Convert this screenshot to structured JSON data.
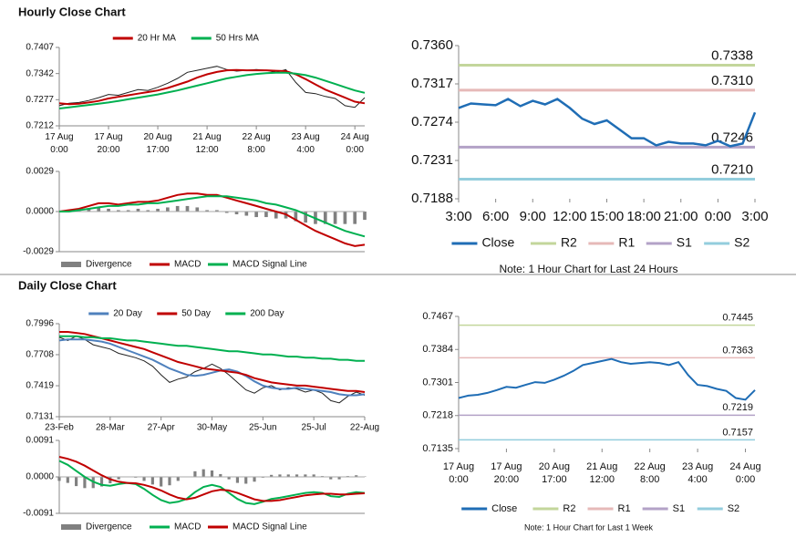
{
  "headings": [
    "Hourly Close Chart",
    "Daily Close Chart"
  ],
  "chart_data": [
    {
      "type": "line",
      "legend": "top",
      "categories": [
        "17 Aug\n0:00",
        null,
        null,
        null,
        null,
        "17 Aug\n20:00",
        null,
        null,
        null,
        null,
        "20 Aug\n17:00",
        null,
        null,
        null,
        null,
        "21 Aug\n12:00",
        null,
        null,
        null,
        null,
        "22 Aug\n8:00",
        null,
        null,
        null,
        null,
        "23 Aug\n4:00",
        null,
        null,
        null,
        null,
        "24 Aug\n0:00",
        null
      ],
      "ylim": [
        0.7212,
        0.7407
      ],
      "yticks": [
        0.7212,
        0.7277,
        0.7342,
        0.7407
      ],
      "series": [
        {
          "color": "#222222",
          "values": [
            0.7262,
            0.7268,
            0.727,
            0.7275,
            0.7282,
            0.729,
            0.7288,
            0.7295,
            0.7302,
            0.73,
            0.7308,
            0.7318,
            0.733,
            0.7345,
            0.735,
            0.7355,
            0.736,
            0.7352,
            0.7348,
            0.735,
            0.7352,
            0.735,
            0.7345,
            0.7352,
            0.732,
            0.7295,
            0.7292,
            0.7285,
            0.728,
            0.7262,
            0.7258,
            0.7282
          ]
        },
        {
          "name": "20 Hr MA",
          "color": "#c00000",
          "values": [
            0.7268,
            0.7266,
            0.7267,
            0.727,
            0.7274,
            0.728,
            0.7284,
            0.7288,
            0.7292,
            0.7296,
            0.73,
            0.7306,
            0.7314,
            0.7322,
            0.7332,
            0.734,
            0.7346,
            0.735,
            0.7351,
            0.735,
            0.735,
            0.735,
            0.7349,
            0.7348,
            0.734,
            0.7328,
            0.7315,
            0.7302,
            0.7292,
            0.7282,
            0.7272,
            0.7268
          ]
        },
        {
          "name": "50 Hrs MA",
          "color": "#00b050",
          "values": [
            0.7255,
            0.7258,
            0.7261,
            0.7264,
            0.7267,
            0.727,
            0.7274,
            0.7278,
            0.7282,
            0.7286,
            0.729,
            0.7295,
            0.73,
            0.7306,
            0.7312,
            0.7318,
            0.7324,
            0.733,
            0.7334,
            0.7338,
            0.7341,
            0.7343,
            0.7344,
            0.7344,
            0.7342,
            0.7338,
            0.7332,
            0.7324,
            0.7316,
            0.7308,
            0.73,
            0.7294
          ]
        }
      ]
    },
    {
      "type": "line",
      "legend": "bottom",
      "ylim": [
        -0.0029,
        0.0029
      ],
      "yticks": [
        -0.0029,
        {
          "value": 0,
          "label": "0.0000"
        },
        0.0029
      ],
      "series": [
        {
          "name": "Divergence",
          "type": "bar",
          "color": "#808080",
          "values": [
            0,
            0.0001,
            0.0001,
            0.0002,
            0.0003,
            0.0002,
            0.0001,
            0.0001,
            0.0002,
            0.0001,
            0.0002,
            0.0003,
            0.0004,
            0.0004,
            0.0003,
            0.0001,
            0.0001,
            -0.0001,
            -0.0002,
            -0.0003,
            -0.0004,
            -0.0004,
            -0.0005,
            -0.0005,
            -0.0007,
            -0.0008,
            -0.0009,
            -0.0009,
            -0.0009,
            -0.0009,
            -0.0009,
            -0.0006
          ]
        },
        {
          "name": "MACD",
          "color": "#c00000",
          "values": [
            0,
            0.0001,
            0.0002,
            0.0004,
            0.0006,
            0.0006,
            0.0005,
            0.0006,
            0.0007,
            0.0007,
            0.0008,
            0.001,
            0.0012,
            0.0013,
            0.0013,
            0.0012,
            0.0012,
            0.001,
            0.0008,
            0.0006,
            0.0004,
            0.0002,
            0,
            -0.0002,
            -0.0006,
            -0.001,
            -0.0014,
            -0.0017,
            -0.002,
            -0.0023,
            -0.0025,
            -0.0024
          ]
        },
        {
          "name": "MACD Signal Line",
          "color": "#00b050",
          "values": [
            0,
            0,
            0.0001,
            0.0002,
            0.0003,
            0.0004,
            0.0004,
            0.0005,
            0.0005,
            0.0006,
            0.0006,
            0.0007,
            0.0008,
            0.0009,
            0.001,
            0.0011,
            0.0011,
            0.0011,
            0.001,
            0.0009,
            0.0008,
            0.0006,
            0.0005,
            0.0003,
            0.0001,
            -0.0002,
            -0.0005,
            -0.0008,
            -0.0011,
            -0.0014,
            -0.0016,
            -0.0018
          ]
        }
      ]
    },
    {
      "type": "line",
      "legend": "bottom",
      "note": "Note: 1 Hour Chart for Last 24 Hours",
      "categories": [
        "3:00",
        null,
        null,
        "6:00",
        null,
        null,
        "9:00",
        null,
        null,
        "12:00",
        null,
        null,
        "15:00",
        null,
        null,
        "18:00",
        null,
        null,
        "21:00",
        null,
        null,
        "0:00",
        null,
        null,
        "3:00"
      ],
      "ylim": [
        0.7188,
        0.736
      ],
      "yticks": [
        0.7188,
        0.7231,
        0.7274,
        0.7317,
        {
          "value": 0.736,
          "label": "0.7360"
        }
      ],
      "series": [
        {
          "name": "Close",
          "color": "#1f6db5",
          "values": [
            0.729,
            0.7295,
            0.7294,
            0.7293,
            0.73,
            0.7292,
            0.7298,
            0.7294,
            0.73,
            0.729,
            0.7278,
            0.7272,
            0.7276,
            0.7266,
            0.7256,
            0.7256,
            0.7248,
            0.7252,
            0.725,
            0.725,
            0.7248,
            0.7253,
            0.7247,
            0.725,
            0.7285
          ]
        }
      ],
      "levels": [
        {
          "name": "R2",
          "value": 0.7338,
          "label": "0.7338",
          "color": "#c3d69b"
        },
        {
          "name": "R1",
          "value": 0.731,
          "label": "0.7310",
          "color": "#e6b9b8"
        },
        {
          "name": "S1",
          "value": 0.7246,
          "label": "0.7246",
          "color": "#b3a2c7"
        },
        {
          "name": "S2",
          "value": 0.721,
          "label": "0.7210",
          "color": "#93cddd"
        }
      ]
    },
    {
      "type": "line",
      "legend": "top",
      "categories": [
        "23-Feb",
        null,
        null,
        null,
        null,
        null,
        "28-Mar",
        null,
        null,
        null,
        null,
        null,
        "27-Apr",
        null,
        null,
        null,
        null,
        null,
        "30-May",
        null,
        null,
        null,
        null,
        null,
        "25-Jun",
        null,
        null,
        null,
        null,
        null,
        "25-Jul",
        null,
        null,
        null,
        null,
        null,
        "22-Aug"
      ],
      "ylim": [
        0.7131,
        0.7996
      ],
      "yticks": [
        0.7131,
        0.7419,
        0.7708,
        0.7996
      ],
      "series": [
        {
          "color": "#222222",
          "values": [
            0.787,
            0.784,
            0.788,
            0.785,
            0.78,
            0.778,
            0.776,
            0.772,
            0.77,
            0.768,
            0.765,
            0.76,
            0.752,
            0.745,
            0.748,
            0.75,
            0.755,
            0.758,
            0.762,
            0.758,
            0.752,
            0.745,
            0.738,
            0.735,
            0.74,
            0.742,
            0.738,
            0.74,
            0.739,
            0.736,
            0.738,
            0.735,
            0.728,
            0.726,
            0.732,
            0.736,
            0.733
          ]
        },
        {
          "name": "20 Day",
          "color": "#4f81bd",
          "values": [
            0.784,
            0.785,
            0.785,
            0.785,
            0.784,
            0.783,
            0.781,
            0.778,
            0.775,
            0.772,
            0.769,
            0.766,
            0.762,
            0.758,
            0.755,
            0.752,
            0.751,
            0.752,
            0.754,
            0.756,
            0.757,
            0.755,
            0.751,
            0.746,
            0.742,
            0.74,
            0.739,
            0.739,
            0.74,
            0.739,
            0.738,
            0.737,
            0.736,
            0.734,
            0.733,
            0.733,
            0.734
          ]
        },
        {
          "name": "50 Day",
          "color": "#c00000",
          "values": [
            0.792,
            0.792,
            0.791,
            0.79,
            0.788,
            0.786,
            0.784,
            0.782,
            0.78,
            0.778,
            0.776,
            0.773,
            0.77,
            0.767,
            0.764,
            0.762,
            0.76,
            0.758,
            0.757,
            0.756,
            0.755,
            0.754,
            0.752,
            0.749,
            0.747,
            0.745,
            0.744,
            0.743,
            0.742,
            0.742,
            0.741,
            0.74,
            0.739,
            0.738,
            0.737,
            0.737,
            0.736
          ]
        },
        {
          "name": "200 Day",
          "color": "#00b050",
          "values": [
            0.788,
            0.788,
            0.788,
            0.787,
            0.787,
            0.786,
            0.786,
            0.785,
            0.784,
            0.784,
            0.783,
            0.782,
            0.781,
            0.78,
            0.779,
            0.779,
            0.778,
            0.777,
            0.776,
            0.775,
            0.774,
            0.774,
            0.773,
            0.772,
            0.771,
            0.771,
            0.77,
            0.769,
            0.769,
            0.768,
            0.768,
            0.767,
            0.767,
            0.766,
            0.766,
            0.765,
            0.765
          ]
        }
      ]
    },
    {
      "type": "line",
      "legend": "bottom",
      "ylim": [
        -0.0091,
        0.0091
      ],
      "yticks": [
        -0.0091,
        {
          "value": 0,
          "label": "0.0000"
        },
        0.0091
      ],
      "series": [
        {
          "name": "Divergence",
          "type": "bar",
          "color": "#808080",
          "values": [
            -0.001,
            -0.0015,
            -0.0023,
            -0.0028,
            -0.0028,
            -0.0024,
            -0.0016,
            -0.0006,
            0,
            -0.0002,
            -0.001,
            -0.0019,
            -0.0024,
            -0.0021,
            -0.001,
            0.0001,
            0.0014,
            0.0019,
            0.0016,
            0.0007,
            -0.0006,
            -0.0015,
            -0.0017,
            -0.0012,
            -0.0002,
            0.0005,
            0.0006,
            0.0006,
            0.0006,
            0.0006,
            0.0006,
            0.0002,
            -0.0006,
            -0.0006,
            0.0002,
            0.0004,
            0.0001
          ]
        },
        {
          "name": "MACD",
          "color": "#00b050",
          "values": [
            0.004,
            0.003,
            0.0015,
            0,
            -0.0012,
            -0.002,
            -0.0022,
            -0.0018,
            -0.0015,
            -0.0018,
            -0.003,
            -0.0045,
            -0.0058,
            -0.0065,
            -0.0062,
            -0.0055,
            -0.0038,
            -0.0025,
            -0.002,
            -0.0025,
            -0.004,
            -0.0055,
            -0.0065,
            -0.0068,
            -0.0062,
            -0.0055,
            -0.0052,
            -0.0048,
            -0.0044,
            -0.004,
            -0.0038,
            -0.004,
            -0.0048,
            -0.005,
            -0.0042,
            -0.0038,
            -0.004
          ]
        },
        {
          "name": "MACD Signal Line",
          "color": "#c00000",
          "values": [
            0.005,
            0.0045,
            0.0038,
            0.0028,
            0.0016,
            0.0004,
            -0.0006,
            -0.0012,
            -0.0015,
            -0.0016,
            -0.002,
            -0.0026,
            -0.0034,
            -0.0044,
            -0.0052,
            -0.0056,
            -0.0052,
            -0.0044,
            -0.0036,
            -0.0032,
            -0.0034,
            -0.004,
            -0.0048,
            -0.0056,
            -0.006,
            -0.006,
            -0.0058,
            -0.0054,
            -0.005,
            -0.0046,
            -0.0044,
            -0.0042,
            -0.0042,
            -0.0044,
            -0.0044,
            -0.0042,
            -0.0041
          ]
        }
      ]
    },
    {
      "type": "line",
      "legend": "bottom",
      "note": "Note: 1 Hour Chart for Last 1 Week",
      "categories": [
        "17 Aug\n0:00",
        null,
        null,
        null,
        null,
        "17 Aug\n20:00",
        null,
        null,
        null,
        null,
        "20 Aug\n17:00",
        null,
        null,
        null,
        null,
        "21 Aug\n12:00",
        null,
        null,
        null,
        null,
        "22 Aug\n8:00",
        null,
        null,
        null,
        null,
        "23 Aug\n4:00",
        null,
        null,
        null,
        null,
        "24 Aug\n0:00",
        null
      ],
      "ylim": [
        0.7135,
        0.7467
      ],
      "yticks": [
        0.7135,
        0.7218,
        0.7301,
        0.7384,
        0.7467
      ],
      "series": [
        {
          "name": "Close",
          "color": "#1f6db5",
          "values": [
            0.7262,
            0.7268,
            0.727,
            0.7275,
            0.7282,
            0.729,
            0.7288,
            0.7295,
            0.7302,
            0.73,
            0.7308,
            0.7318,
            0.733,
            0.7345,
            0.735,
            0.7355,
            0.736,
            0.7352,
            0.7348,
            0.735,
            0.7352,
            0.735,
            0.7345,
            0.7352,
            0.732,
            0.7295,
            0.7292,
            0.7285,
            0.728,
            0.7262,
            0.7258,
            0.7282
          ]
        }
      ],
      "levels": [
        {
          "name": "R2",
          "value": 0.7445,
          "label": "0.7445",
          "color": "#c3d69b"
        },
        {
          "name": "R1",
          "value": 0.7363,
          "label": "0.7363",
          "color": "#e6b9b8"
        },
        {
          "name": "S1",
          "value": 0.7219,
          "label": "0.7219",
          "color": "#b3a2c7"
        },
        {
          "name": "S2",
          "value": 0.7157,
          "label": "0.7157",
          "color": "#93cddd"
        }
      ]
    }
  ]
}
